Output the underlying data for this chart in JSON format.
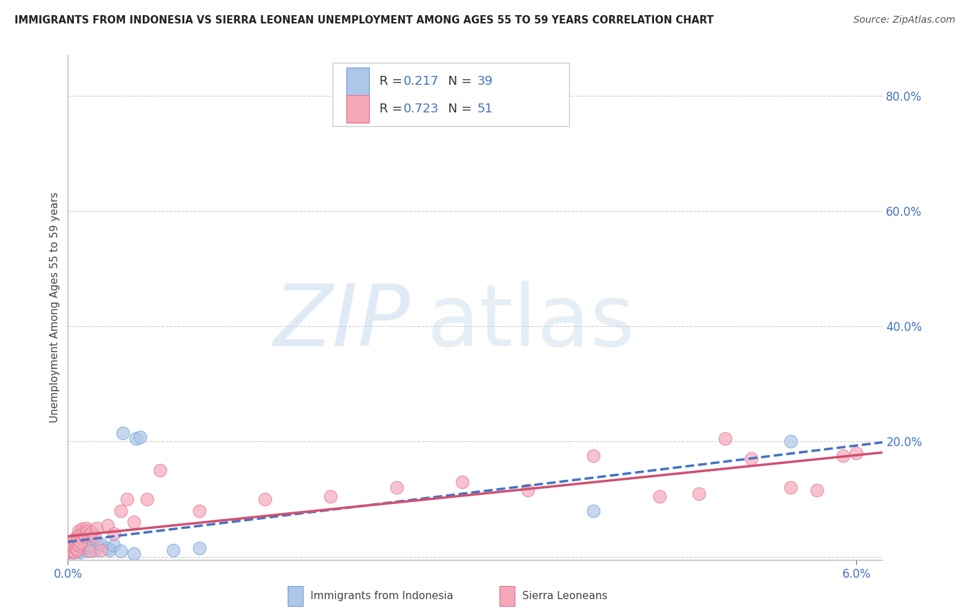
{
  "title": "IMMIGRANTS FROM INDONESIA VS SIERRA LEONEAN UNEMPLOYMENT AMONG AGES 55 TO 59 YEARS CORRELATION CHART",
  "source": "Source: ZipAtlas.com",
  "ylabel": "Unemployment Among Ages 55 to 59 years",
  "legend_labels": [
    "Immigrants from Indonesia",
    "Sierra Leoneans"
  ],
  "r_indonesia": 0.217,
  "n_indonesia": 39,
  "r_sierra": 0.723,
  "n_sierra": 51,
  "color_indonesia_fill": "#aec6e8",
  "color_indonesia_edge": "#6a9fd8",
  "color_sierra_fill": "#f4a8b8",
  "color_sierra_edge": "#e07090",
  "color_indonesia_line": "#4472c4",
  "color_sierra_line": "#d05070",
  "color_axis_text": "#4472c4",
  "xlim": [
    0.0,
    0.062
  ],
  "ylim": [
    -0.005,
    0.87
  ],
  "right_ytick_vals": [
    0.0,
    0.2,
    0.4,
    0.6,
    0.8
  ],
  "right_yticklabels": [
    "",
    "20.0%",
    "40.0%",
    "60.0%",
    "80.0%"
  ],
  "xtick_vals": [
    0.0,
    0.06
  ],
  "xticklabels": [
    "0.0%",
    "6.0%"
  ],
  "indonesia_scatter": [
    [
      5e-05,
      0.008
    ],
    [
      0.0001,
      0.012
    ],
    [
      0.0001,
      0.01
    ],
    [
      0.0002,
      0.015
    ],
    [
      0.0002,
      0.018
    ],
    [
      0.0003,
      0.02
    ],
    [
      0.0003,
      0.012
    ],
    [
      0.0004,
      0.025
    ],
    [
      0.0004,
      0.008
    ],
    [
      0.0005,
      0.015
    ],
    [
      0.0005,
      0.022
    ],
    [
      0.0006,
      0.01
    ],
    [
      0.0007,
      0.018
    ],
    [
      0.0007,
      0.03
    ],
    [
      0.0008,
      0.012
    ],
    [
      0.0009,
      0.008
    ],
    [
      0.001,
      0.035
    ],
    [
      0.001,
      0.02
    ],
    [
      0.0012,
      0.025
    ],
    [
      0.0013,
      0.015
    ],
    [
      0.0014,
      0.04
    ],
    [
      0.0015,
      0.01
    ],
    [
      0.0016,
      0.02
    ],
    [
      0.0017,
      0.018
    ],
    [
      0.002,
      0.012
    ],
    [
      0.0022,
      0.025
    ],
    [
      0.0025,
      0.022
    ],
    [
      0.003,
      0.015
    ],
    [
      0.0032,
      0.012
    ],
    [
      0.0035,
      0.02
    ],
    [
      0.004,
      0.01
    ],
    [
      0.0042,
      0.215
    ],
    [
      0.005,
      0.005
    ],
    [
      0.0052,
      0.205
    ],
    [
      0.0055,
      0.208
    ],
    [
      0.008,
      0.012
    ],
    [
      0.01,
      0.015
    ],
    [
      0.04,
      0.08
    ],
    [
      0.055,
      0.2
    ]
  ],
  "sierra_scatter": [
    [
      5e-05,
      0.01
    ],
    [
      0.0001,
      0.015
    ],
    [
      0.0001,
      0.008
    ],
    [
      0.0002,
      0.02
    ],
    [
      0.0002,
      0.012
    ],
    [
      0.0003,
      0.025
    ],
    [
      0.0003,
      0.01
    ],
    [
      0.0004,
      0.018
    ],
    [
      0.0005,
      0.03
    ],
    [
      0.0005,
      0.008
    ],
    [
      0.0006,
      0.022
    ],
    [
      0.0006,
      0.015
    ],
    [
      0.0007,
      0.035
    ],
    [
      0.0007,
      0.012
    ],
    [
      0.0008,
      0.045
    ],
    [
      0.0008,
      0.02
    ],
    [
      0.0009,
      0.04
    ],
    [
      0.001,
      0.025
    ],
    [
      0.0011,
      0.048
    ],
    [
      0.0012,
      0.04
    ],
    [
      0.0013,
      0.035
    ],
    [
      0.0014,
      0.05
    ],
    [
      0.0015,
      0.045
    ],
    [
      0.0016,
      0.038
    ],
    [
      0.0017,
      0.01
    ],
    [
      0.0018,
      0.042
    ],
    [
      0.002,
      0.035
    ],
    [
      0.0022,
      0.05
    ],
    [
      0.0025,
      0.012
    ],
    [
      0.003,
      0.055
    ],
    [
      0.0035,
      0.04
    ],
    [
      0.004,
      0.08
    ],
    [
      0.0045,
      0.1
    ],
    [
      0.005,
      0.06
    ],
    [
      0.006,
      0.1
    ],
    [
      0.007,
      0.15
    ],
    [
      0.01,
      0.08
    ],
    [
      0.015,
      0.1
    ],
    [
      0.02,
      0.105
    ],
    [
      0.025,
      0.12
    ],
    [
      0.03,
      0.13
    ],
    [
      0.035,
      0.115
    ],
    [
      0.04,
      0.175
    ],
    [
      0.045,
      0.105
    ],
    [
      0.048,
      0.11
    ],
    [
      0.05,
      0.205
    ],
    [
      0.052,
      0.17
    ],
    [
      0.055,
      0.12
    ],
    [
      0.057,
      0.115
    ],
    [
      0.059,
      0.175
    ],
    [
      0.06,
      0.18
    ]
  ]
}
